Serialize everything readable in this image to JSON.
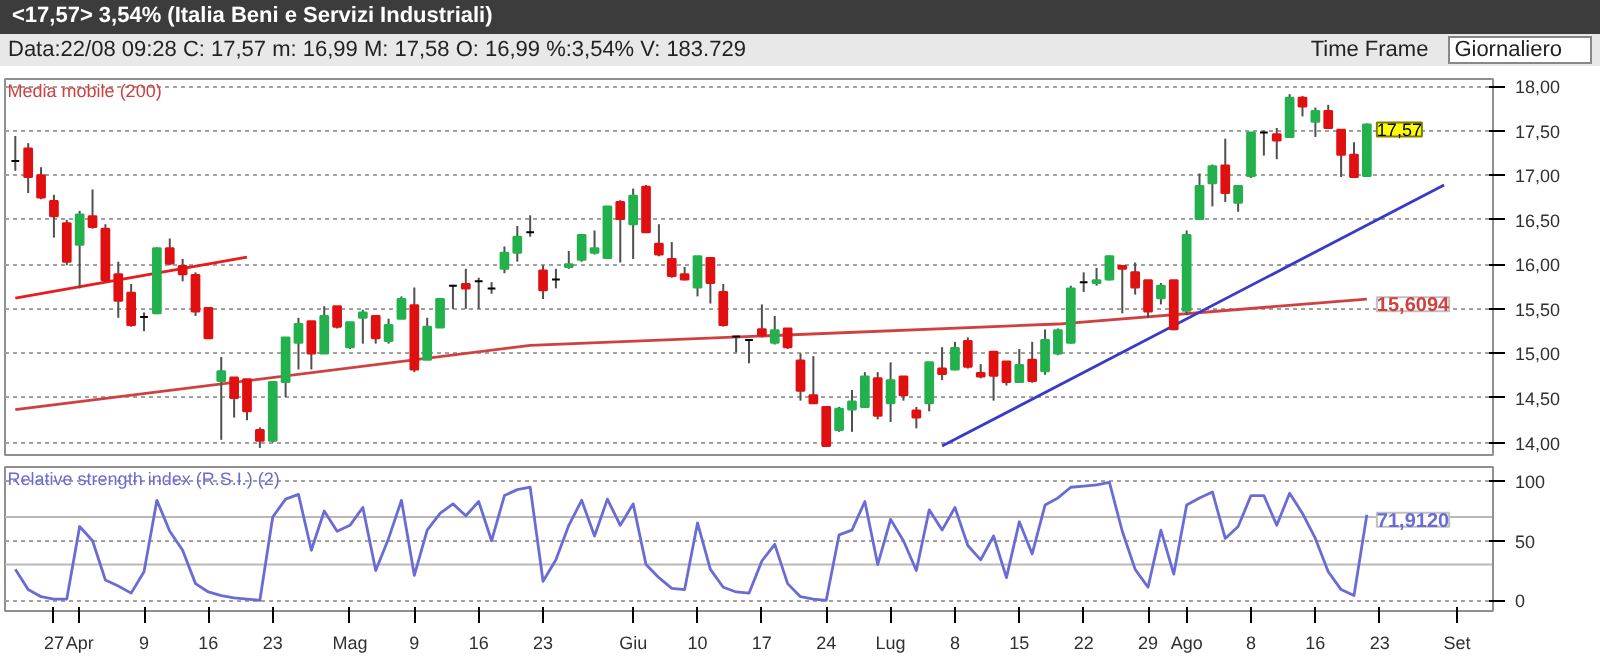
{
  "chart_data": [
    {
      "type": "candlestick",
      "title": "<17,57> 3,54% (Italia Beni e Servizi Industriali)",
      "subtitle": "Data:22/08 09:28   C: 17,57   m: 16,99   M: 17,58   O: 16,99   %:3,54%   V: 183.729",
      "annotations": [
        "Time Frame",
        "Giornaliero"
      ],
      "categories": [
        null,
        null,
        null,
        null,
        null,
        null,
        null,
        null,
        null,
        null,
        null,
        null,
        null,
        null,
        null,
        null,
        null,
        null,
        null,
        null,
        null,
        null,
        null,
        null,
        null,
        null,
        null,
        null,
        null,
        null,
        null,
        null,
        null,
        null,
        null,
        null,
        null,
        null,
        null,
        null,
        null,
        null,
        null,
        null,
        null,
        null,
        null,
        null,
        null,
        null,
        null,
        null,
        null,
        null,
        null,
        null,
        null,
        null,
        null,
        null,
        null,
        null,
        null,
        null,
        null,
        null,
        null,
        null,
        null,
        null,
        null,
        null,
        null,
        null,
        null,
        null,
        null,
        null,
        null,
        null,
        null,
        null,
        null,
        null,
        null,
        null,
        null,
        null,
        null,
        null,
        null,
        null,
        null,
        null,
        null,
        null,
        null,
        null,
        null,
        null,
        null,
        null,
        null,
        null,
        null,
        null,
        null,
        null,
        null,
        null,
        null,
        null,
        null,
        null,
        null
      ],
      "ohlc": [
        [
          17.16,
          17.44,
          17.05,
          17.16
        ],
        [
          17.3,
          17.36,
          16.8,
          16.98
        ],
        [
          17.0,
          17.09,
          16.73,
          16.75
        ],
        [
          16.71,
          16.78,
          16.3,
          16.54
        ],
        [
          16.46,
          16.5,
          15.99,
          16.03
        ],
        [
          16.22,
          16.6,
          15.73,
          16.56
        ],
        [
          16.54,
          16.84,
          16.4,
          16.42
        ],
        [
          16.4,
          16.45,
          15.8,
          15.82
        ],
        [
          15.89,
          16.03,
          15.4,
          15.59
        ],
        [
          15.68,
          15.78,
          15.3,
          15.32
        ],
        [
          15.41,
          15.46,
          15.25,
          15.41
        ],
        [
          15.45,
          16.19,
          15.44,
          16.18
        ],
        [
          16.18,
          16.29,
          15.99,
          16.01
        ],
        [
          15.98,
          16.06,
          15.81,
          15.89
        ],
        [
          15.88,
          15.91,
          15.42,
          15.47
        ],
        [
          15.51,
          15.51,
          15.17,
          15.17
        ],
        [
          14.69,
          14.96,
          14.03,
          14.8
        ],
        [
          14.73,
          14.73,
          14.28,
          14.5
        ],
        [
          14.71,
          14.71,
          14.25,
          14.35
        ],
        [
          14.14,
          14.17,
          13.94,
          14.02
        ],
        [
          14.02,
          14.68,
          14.0,
          14.68
        ],
        [
          14.68,
          15.18,
          14.51,
          15.18
        ],
        [
          15.12,
          15.4,
          14.82,
          15.33
        ],
        [
          15.36,
          15.36,
          14.82,
          15.0
        ],
        [
          15.0,
          15.53,
          15.0,
          15.42
        ],
        [
          15.53,
          15.53,
          15.28,
          15.3
        ],
        [
          15.07,
          15.35,
          15.05,
          15.35
        ],
        [
          15.4,
          15.49,
          15.11,
          15.46
        ],
        [
          15.42,
          15.42,
          15.11,
          15.17
        ],
        [
          15.14,
          15.39,
          15.11,
          15.32
        ],
        [
          15.39,
          15.64,
          15.39,
          15.61
        ],
        [
          15.54,
          15.74,
          14.79,
          14.82
        ],
        [
          14.93,
          15.4,
          14.93,
          15.3
        ],
        [
          15.29,
          15.61,
          15.29,
          15.61
        ],
        [
          15.76,
          15.77,
          15.5,
          15.76
        ],
        [
          15.78,
          15.95,
          15.5,
          15.73
        ],
        [
          15.81,
          15.85,
          15.5,
          15.81
        ],
        [
          15.73,
          15.8,
          15.67,
          15.73
        ],
        [
          15.95,
          16.2,
          15.9,
          16.13
        ],
        [
          16.13,
          16.43,
          16.03,
          16.31
        ],
        [
          16.36,
          16.55,
          16.31,
          16.36
        ],
        [
          15.93,
          15.99,
          15.61,
          15.71
        ],
        [
          15.83,
          15.95,
          15.73,
          15.83
        ],
        [
          15.97,
          16.15,
          15.95,
          16.0
        ],
        [
          16.05,
          16.33,
          16.03,
          16.33
        ],
        [
          16.13,
          16.38,
          16.11,
          16.18
        ],
        [
          16.07,
          16.65,
          16.07,
          16.65
        ],
        [
          16.7,
          16.72,
          16.02,
          16.51
        ],
        [
          16.45,
          16.85,
          16.06,
          16.77
        ],
        [
          16.87,
          16.89,
          16.36,
          16.36
        ],
        [
          16.23,
          16.45,
          16.09,
          16.11
        ],
        [
          16.06,
          16.25,
          15.85,
          15.87
        ],
        [
          15.89,
          15.97,
          15.82,
          15.83
        ],
        [
          15.74,
          16.09,
          15.64,
          16.09
        ],
        [
          16.07,
          16.07,
          15.56,
          15.79
        ],
        [
          15.69,
          15.78,
          15.3,
          15.32
        ],
        [
          15.19,
          15.19,
          15.01,
          15.19
        ],
        [
          15.15,
          15.15,
          14.89,
          15.15
        ],
        [
          15.27,
          15.55,
          15.18,
          15.2
        ],
        [
          15.12,
          15.42,
          15.1,
          15.26
        ],
        [
          15.28,
          15.28,
          15.05,
          15.07
        ],
        [
          14.92,
          15.0,
          14.47,
          14.58
        ],
        [
          14.53,
          14.97,
          14.44,
          14.44
        ],
        [
          14.4,
          14.4,
          13.96,
          13.96
        ],
        [
          14.14,
          14.4,
          14.12,
          14.38
        ],
        [
          14.37,
          14.59,
          14.12,
          14.46
        ],
        [
          14.4,
          14.79,
          14.4,
          14.74
        ],
        [
          14.72,
          14.79,
          14.26,
          14.3
        ],
        [
          14.44,
          14.9,
          14.23,
          14.7
        ],
        [
          14.74,
          14.74,
          14.47,
          14.53
        ],
        [
          14.36,
          14.4,
          14.16,
          14.28
        ],
        [
          14.44,
          14.9,
          14.35,
          14.9
        ],
        [
          14.83,
          15.07,
          14.7,
          14.77
        ],
        [
          14.82,
          15.13,
          14.81,
          15.06
        ],
        [
          15.14,
          15.18,
          14.83,
          14.85
        ],
        [
          14.78,
          14.88,
          14.72,
          14.74
        ],
        [
          15.02,
          15.02,
          14.47,
          14.75
        ],
        [
          14.91,
          14.91,
          14.64,
          14.68
        ],
        [
          14.68,
          15.05,
          14.67,
          14.87
        ],
        [
          14.93,
          15.13,
          14.67,
          14.69
        ],
        [
          14.8,
          15.27,
          14.76,
          15.15
        ],
        [
          15.0,
          15.28,
          14.98,
          15.26
        ],
        [
          15.12,
          15.76,
          15.11,
          15.73
        ],
        [
          15.8,
          15.91,
          15.69,
          15.8
        ],
        [
          15.79,
          15.96,
          15.76,
          15.82
        ],
        [
          15.83,
          16.1,
          15.82,
          16.09
        ],
        [
          15.98,
          15.98,
          15.45,
          15.95
        ],
        [
          15.91,
          16.02,
          15.66,
          15.74
        ],
        [
          15.82,
          15.82,
          15.4,
          15.47
        ],
        [
          15.62,
          15.79,
          15.55,
          15.76
        ],
        [
          15.82,
          15.82,
          15.26,
          15.27
        ],
        [
          15.48,
          16.38,
          15.43,
          16.33
        ],
        [
          16.51,
          17.02,
          16.5,
          16.88
        ],
        [
          16.91,
          17.12,
          16.65,
          17.1
        ],
        [
          17.11,
          17.41,
          16.7,
          16.8
        ],
        [
          16.69,
          16.88,
          16.59,
          16.88
        ],
        [
          16.99,
          17.48,
          16.97,
          17.48
        ],
        [
          17.48,
          17.5,
          17.22,
          17.48
        ],
        [
          17.46,
          17.53,
          17.18,
          17.39
        ],
        [
          17.43,
          17.91,
          17.43,
          17.87
        ],
        [
          17.87,
          17.89,
          17.66,
          17.77
        ],
        [
          17.6,
          17.76,
          17.43,
          17.72
        ],
        [
          17.72,
          17.79,
          17.52,
          17.53
        ],
        [
          17.51,
          17.51,
          16.98,
          17.23
        ],
        [
          17.23,
          17.37,
          16.97,
          16.98
        ],
        [
          16.99,
          17.58,
          16.99,
          17.57
        ],
        null,
        null,
        null,
        null,
        null,
        null,
        null,
        null,
        null
      ],
      "value_labels": [
        null,
        null,
        null,
        null,
        null,
        null,
        null,
        null,
        null,
        null,
        null,
        null,
        null,
        null,
        null,
        null,
        null,
        null,
        null,
        null,
        null,
        null,
        null,
        null,
        null,
        null,
        null,
        null,
        null,
        null,
        null,
        null,
        null,
        null,
        null,
        null,
        null,
        null,
        null,
        null,
        null,
        null,
        null,
        null,
        null,
        null,
        null,
        null,
        null,
        null,
        null,
        null,
        null,
        null,
        null,
        null,
        null,
        null,
        null,
        null,
        null,
        null,
        null,
        null,
        null,
        null,
        null,
        null,
        null,
        null,
        null,
        null,
        null,
        null,
        null,
        null,
        null,
        null,
        null,
        null,
        null,
        null,
        null,
        null,
        null,
        null,
        null,
        null,
        null,
        null,
        null,
        null,
        null,
        null,
        null,
        null,
        null,
        null,
        null,
        null,
        null,
        null,
        null,
        null,
        null,
        "17,57",
        null,
        null,
        null,
        null,
        null,
        null,
        null,
        null,
        null
      ],
      "colors": [
        "#000000",
        "#e01010",
        "#e01010",
        "#e01010",
        "#e01010",
        "#22b14c",
        "#e01010",
        "#e01010",
        "#e01010",
        "#e01010",
        "#000000",
        "#22b14c",
        "#e01010",
        "#e01010",
        "#e01010",
        "#e01010",
        "#22b14c",
        "#e01010",
        "#e01010",
        "#e01010",
        "#22b14c",
        "#22b14c",
        "#22b14c",
        "#e01010",
        "#22b14c",
        "#e01010",
        "#22b14c",
        "#22b14c",
        "#e01010",
        "#22b14c",
        "#22b14c",
        "#e01010",
        "#22b14c",
        "#22b14c",
        "#000000",
        "#e01010",
        "#000000",
        "#000000",
        "#22b14c",
        "#22b14c",
        "#000000",
        "#e01010",
        "#000000",
        "#22b14c",
        "#22b14c",
        "#22b14c",
        "#22b14c",
        "#e01010",
        "#22b14c",
        "#e01010",
        "#e01010",
        "#e01010",
        "#e01010",
        "#22b14c",
        "#e01010",
        "#e01010",
        "#000000",
        "#000000",
        "#e01010",
        "#22b14c",
        "#e01010",
        "#e01010",
        "#e01010",
        "#e01010",
        "#22b14c",
        "#22b14c",
        "#22b14c",
        "#e01010",
        "#22b14c",
        "#e01010",
        "#e01010",
        "#22b14c",
        "#e01010",
        "#22b14c",
        "#e01010",
        "#e01010",
        "#e01010",
        "#e01010",
        "#22b14c",
        "#e01010",
        "#22b14c",
        "#22b14c",
        "#22b14c",
        "#000000",
        "#22b14c",
        "#22b14c",
        "#e01010",
        "#e01010",
        "#e01010",
        "#22b14c",
        "#e01010",
        "#22b14c",
        "#22b14c",
        "#22b14c",
        "#e01010",
        "#22b14c",
        "#22b14c",
        "#000000",
        "#e01010",
        "#22b14c",
        "#e01010",
        "#22b14c",
        "#e01010",
        "#e01010",
        "#e01010",
        "#22b14c",
        null,
        null,
        null,
        null,
        null,
        null,
        null,
        null,
        null
      ],
      "series": [
        {
          "type": "line",
          "name": "Media mobile (200)",
          "color": "#d04040",
          "values": [
            14.37,
            null,
            null,
            null,
            null,
            null,
            null,
            null,
            null,
            null,
            null,
            null,
            null,
            null,
            null,
            null,
            null,
            null,
            null,
            null,
            null,
            null,
            null,
            null,
            null,
            null,
            null,
            null,
            null,
            null,
            null,
            null,
            null,
            null,
            null,
            null,
            null,
            null,
            null,
            null,
            15.09,
            null,
            null,
            null,
            null,
            null,
            null,
            null,
            null,
            null,
            null,
            null,
            null,
            null,
            null,
            null,
            null,
            null,
            null,
            null,
            null,
            null,
            null,
            null,
            null,
            null,
            null,
            null,
            null,
            null,
            null,
            null,
            null,
            null,
            null,
            null,
            null,
            null,
            null,
            null,
            null,
            15.33,
            null,
            null,
            null,
            null,
            null,
            null,
            null,
            null,
            null,
            null,
            null,
            null,
            null,
            null,
            null,
            null,
            null,
            null,
            null,
            null,
            null,
            null,
            null,
            15.6094,
            null,
            null,
            null,
            null,
            null,
            null,
            null,
            null,
            null
          ],
          "value_labels": [
            null,
            null,
            null,
            null,
            null,
            null,
            null,
            null,
            null,
            null,
            null,
            null,
            null,
            null,
            null,
            null,
            null,
            null,
            null,
            null,
            null,
            null,
            null,
            null,
            null,
            null,
            null,
            null,
            null,
            null,
            null,
            null,
            null,
            null,
            null,
            null,
            null,
            null,
            null,
            null,
            null,
            null,
            null,
            null,
            null,
            null,
            null,
            null,
            null,
            null,
            null,
            null,
            null,
            null,
            null,
            null,
            null,
            null,
            null,
            null,
            null,
            null,
            null,
            null,
            null,
            null,
            null,
            null,
            null,
            null,
            null,
            null,
            null,
            null,
            null,
            null,
            null,
            null,
            null,
            null,
            null,
            null,
            null,
            null,
            null,
            null,
            null,
            null,
            null,
            null,
            null,
            null,
            null,
            null,
            null,
            null,
            null,
            null,
            null,
            null,
            null,
            null,
            null,
            null,
            null,
            "15,6094",
            null,
            null,
            null,
            null,
            null,
            null,
            null,
            null,
            null
          ]
        },
        {
          "type": "line",
          "color": "#e81c1c",
          "values": [
            15.62,
            null,
            null,
            null,
            null,
            null,
            null,
            null,
            null,
            null,
            null,
            null,
            null,
            null,
            null,
            null,
            null,
            null,
            16.08,
            null,
            null,
            null,
            null,
            null,
            null,
            null,
            null,
            null,
            null,
            null,
            null,
            null,
            null,
            null,
            null,
            null,
            null,
            null,
            null,
            null,
            null,
            null,
            null,
            null,
            null,
            null,
            null,
            null,
            null,
            null,
            null,
            null,
            null,
            null,
            null,
            null,
            null,
            null,
            null,
            null,
            null,
            null,
            null,
            null,
            null,
            null,
            null,
            null,
            null,
            null,
            null,
            null,
            null,
            null,
            null,
            null,
            null,
            null,
            null,
            null,
            null,
            null,
            null,
            null,
            null,
            null,
            null,
            null,
            null,
            null,
            null,
            null,
            null,
            null,
            null,
            null,
            null,
            null,
            null,
            null,
            null,
            null,
            null,
            null,
            null,
            null,
            null,
            null,
            null,
            null,
            null,
            null,
            null,
            null,
            null
          ]
        },
        {
          "type": "line",
          "color": "#3a3ac8",
          "values": [
            null,
            null,
            null,
            null,
            null,
            null,
            null,
            null,
            null,
            null,
            null,
            null,
            null,
            null,
            null,
            null,
            null,
            null,
            null,
            null,
            null,
            null,
            null,
            null,
            null,
            null,
            null,
            null,
            null,
            null,
            null,
            null,
            null,
            null,
            null,
            null,
            null,
            null,
            null,
            null,
            null,
            null,
            null,
            null,
            null,
            null,
            null,
            null,
            null,
            null,
            null,
            null,
            null,
            null,
            null,
            null,
            null,
            null,
            null,
            null,
            null,
            null,
            null,
            null,
            null,
            null,
            null,
            null,
            null,
            null,
            null,
            null,
            13.96,
            null,
            null,
            null,
            null,
            null,
            null,
            null,
            null,
            null,
            null,
            null,
            null,
            null,
            null,
            null,
            null,
            null,
            null,
            null,
            null,
            null,
            null,
            null,
            null,
            null,
            null,
            null,
            null,
            null,
            null,
            null,
            null,
            null,
            null,
            null,
            null,
            null,
            null,
            16.89,
            null,
            null,
            null
          ]
        }
      ],
      "ylim": [
        13.86,
        18.08
      ],
      "yticks": [
        {
          "value": 14,
          "label": "14,00"
        },
        {
          "value": 14.5,
          "label": "14,50"
        },
        {
          "value": 15,
          "label": "15,00"
        },
        {
          "value": 15.5,
          "label": "15,50"
        },
        {
          "value": 16,
          "label": "16,00"
        },
        {
          "value": 16.5,
          "label": "16,50"
        },
        {
          "value": 17,
          "label": "17,00"
        },
        {
          "value": 17.5,
          "label": "17,50"
        },
        {
          "value": 18,
          "label": "18,00"
        }
      ],
      "grid": "y"
    },
    {
      "type": "line",
      "categories": [
        null,
        null,
        null,
        "27",
        null,
        "Apr",
        null,
        null,
        null,
        null,
        "9",
        null,
        null,
        null,
        null,
        "16",
        null,
        null,
        null,
        null,
        "23",
        null,
        null,
        null,
        null,
        null,
        "Mag",
        null,
        null,
        null,
        null,
        "9",
        null,
        null,
        null,
        null,
        "16",
        null,
        null,
        null,
        null,
        "23",
        null,
        null,
        null,
        null,
        null,
        null,
        "Giu",
        null,
        null,
        null,
        null,
        "10",
        null,
        null,
        null,
        null,
        "17",
        null,
        null,
        null,
        null,
        "24",
        null,
        null,
        null,
        null,
        "Lug",
        null,
        null,
        null,
        null,
        "8",
        null,
        null,
        null,
        null,
        "15",
        null,
        null,
        null,
        null,
        "22",
        null,
        null,
        null,
        null,
        "29",
        null,
        null,
        "Ago",
        null,
        null,
        null,
        null,
        "8",
        null,
        null,
        null,
        null,
        "16",
        null,
        null,
        null,
        null,
        "23",
        null,
        null,
        null,
        null,
        null,
        "Set",
        null,
        null
      ],
      "series": [
        {
          "name": "Relative strength index (R.S.I.) (2)",
          "color": "#6b6bd6",
          "values": [
            26,
            9,
            3,
            1,
            1,
            62,
            50,
            17,
            12,
            6,
            24,
            84,
            58,
            42,
            14,
            7,
            4,
            2,
            1,
            0,
            70,
            85,
            89,
            42,
            75,
            58,
            63,
            78,
            25,
            52,
            84,
            21,
            59,
            73,
            81,
            71,
            83,
            50,
            88,
            93,
            95,
            16,
            34,
            63,
            84,
            54,
            85,
            63,
            81,
            30,
            19,
            10,
            9,
            65,
            26,
            11,
            7,
            6,
            33,
            47,
            14,
            3,
            1,
            0,
            55,
            59,
            83,
            30,
            68,
            50,
            25,
            76,
            59,
            78,
            46,
            34,
            54,
            19,
            66,
            39,
            80,
            86,
            95,
            96,
            97,
            99,
            58,
            26,
            11,
            59,
            22,
            80,
            86,
            91,
            52,
            62,
            88,
            88,
            63,
            90,
            73,
            52,
            24,
            9,
            4,
            71.912,
            null,
            null,
            null,
            null,
            null,
            null,
            null,
            null,
            null
          ],
          "value_labels": [
            null,
            null,
            null,
            null,
            null,
            null,
            null,
            null,
            null,
            null,
            null,
            null,
            null,
            null,
            null,
            null,
            null,
            null,
            null,
            null,
            null,
            null,
            null,
            null,
            null,
            null,
            null,
            null,
            null,
            null,
            null,
            null,
            null,
            null,
            null,
            null,
            null,
            null,
            null,
            null,
            null,
            null,
            null,
            null,
            null,
            null,
            null,
            null,
            null,
            null,
            null,
            null,
            null,
            null,
            null,
            null,
            null,
            null,
            null,
            null,
            null,
            null,
            null,
            null,
            null,
            null,
            null,
            null,
            null,
            null,
            null,
            null,
            null,
            null,
            null,
            null,
            null,
            null,
            null,
            null,
            null,
            null,
            null,
            null,
            null,
            null,
            null,
            null,
            null,
            null,
            null,
            null,
            null,
            null,
            null,
            null,
            null,
            null,
            null,
            null,
            null,
            null,
            null,
            null,
            null,
            "71,9120",
            null,
            null,
            null,
            null,
            null,
            null,
            null,
            null,
            null
          ]
        }
      ],
      "ref_lines": [
        {
          "axis": "y",
          "value": 30,
          "color": "#b8b8b8"
        },
        {
          "axis": "y",
          "value": 70,
          "color": "#b8b8b8"
        }
      ],
      "ylim": [
        -9,
        112
      ],
      "yticks": [
        0,
        50,
        100
      ],
      "grid": "y"
    }
  ]
}
